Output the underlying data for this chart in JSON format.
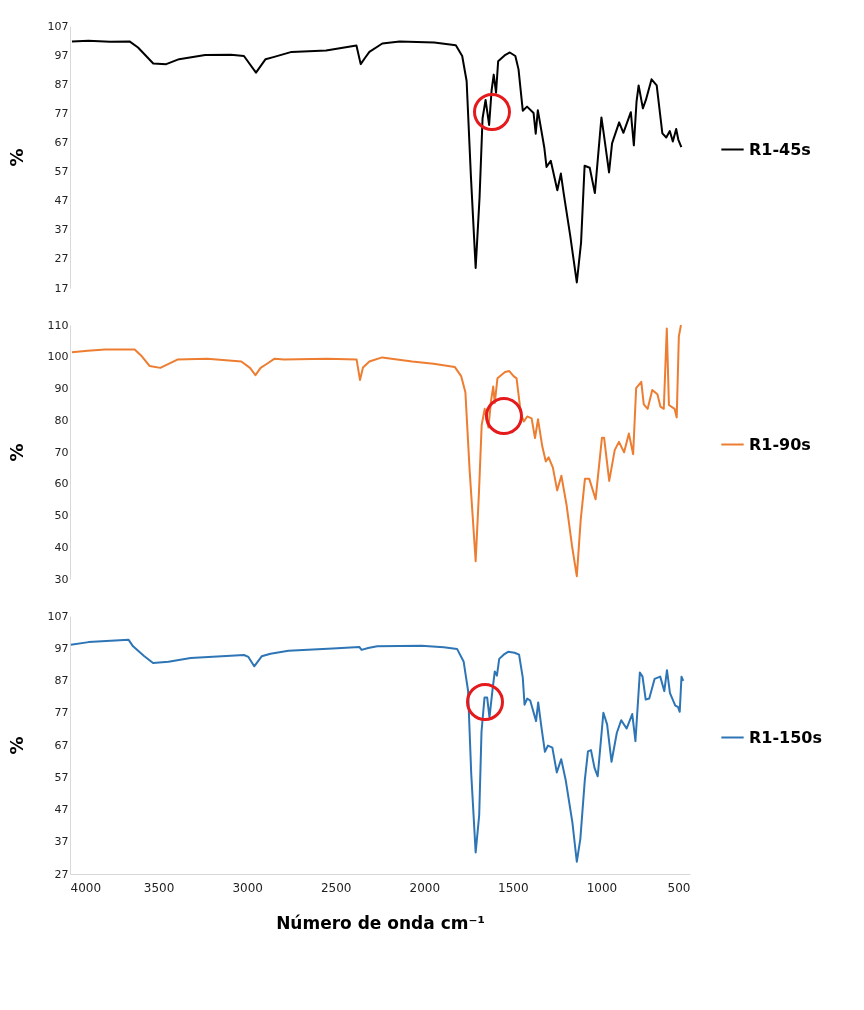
{
  "chart_data": [
    {
      "type": "line",
      "ylabel": "%",
      "xlim": [
        4000,
        500
      ],
      "ylim": [
        17,
        107
      ],
      "yticks": [
        17,
        27,
        37,
        47,
        57,
        67,
        77,
        87,
        97,
        107
      ],
      "tick_labels": "y",
      "grid": false,
      "legend": "right",
      "series": [
        {
          "name": "R1-45s",
          "color": "#000000",
          "x": [
            3989,
            3896,
            3774,
            3664,
            3616,
            3530,
            3457,
            3384,
            3237,
            3091,
            3018,
            2950,
            2896,
            2847,
            2749,
            2554,
            2383,
            2359,
            2335,
            2310,
            2237,
            2139,
            1944,
            1822,
            1786,
            1761,
            1737,
            1710,
            1688,
            1671,
            1654,
            1634,
            1620,
            1608,
            1595,
            1583,
            1542,
            1517,
            1486,
            1468,
            1444,
            1420,
            1383,
            1371,
            1359,
            1334,
            1322,
            1310,
            1286,
            1249,
            1229,
            1212,
            1176,
            1139,
            1115,
            1095,
            1066,
            1037,
            1000,
            986,
            957,
            940,
            900,
            876,
            834,
            817,
            802,
            790,
            766,
            749,
            717,
            688,
            656,
            634,
            614,
            597,
            578,
            566,
            549
          ],
          "values": [
            101.7,
            101.9,
            101.6,
            101.7,
            99.6,
            94.1,
            93.9,
            95.6,
            97.0,
            97.1,
            96.7,
            91.0,
            95.6,
            96.4,
            98.1,
            98.6,
            100.3,
            93.9,
            96.0,
            98.1,
            101.0,
            101.7,
            101.3,
            100.4,
            96.7,
            88.1,
            55.6,
            23.9,
            48.1,
            75.3,
            81.6,
            73.0,
            84.9,
            90.3,
            84.1,
            94.9,
            97.1,
            97.9,
            96.7,
            92.1,
            77.9,
            79.3,
            77.1,
            70.0,
            78.1,
            69.3,
            65.0,
            58.6,
            60.7,
            50.6,
            56.3,
            49.1,
            34.9,
            18.9,
            32.6,
            59.0,
            58.3,
            49.6,
            75.6,
            69.6,
            56.7,
            66.7,
            73.9,
            70.3,
            77.4,
            66.0,
            80.9,
            86.6,
            78.7,
            81.6,
            88.7,
            86.6,
            70.1,
            68.7,
            70.9,
            67.3,
            71.6,
            68.0,
            65.4
          ]
        }
      ]
    },
    {
      "type": "line",
      "ylabel": "%",
      "xlim": [
        4000,
        500
      ],
      "ylim": [
        30,
        110
      ],
      "yticks": [
        30,
        40,
        50,
        60,
        70,
        80,
        90,
        100,
        110
      ],
      "tick_labels": "y",
      "grid": false,
      "legend": "right",
      "series": [
        {
          "name": "R1-90s",
          "color": "#ed7d31",
          "x": [
            3989,
            3900,
            3803,
            3635,
            3599,
            3551,
            3490,
            3394,
            3225,
            3033,
            2984,
            2953,
            2924,
            2888,
            2845,
            2792,
            2551,
            2382,
            2363,
            2346,
            2310,
            2238,
            2069,
            1948,
            1828,
            1792,
            1768,
            1744,
            1710,
            1691,
            1676,
            1659,
            1638,
            1623,
            1611,
            1602,
            1587,
            1544,
            1520,
            1496,
            1479,
            1455,
            1438,
            1419,
            1394,
            1375,
            1358,
            1334,
            1314,
            1298,
            1274,
            1250,
            1226,
            1197,
            1166,
            1139,
            1117,
            1093,
            1069,
            1033,
            997,
            985,
            956,
            925,
            901,
            872,
            845,
            821,
            804,
            775,
            761,
            739,
            713,
            684,
            667,
            648,
            631,
            619,
            587,
            575,
            563,
            551
          ],
          "values": [
            101.4,
            101.9,
            102.3,
            102.3,
            100.4,
            97.1,
            96.5,
            99.1,
            99.4,
            98.5,
            96.5,
            94.2,
            96.5,
            97.8,
            99.4,
            99.1,
            99.4,
            99.1,
            92.7,
            96.6,
            98.5,
            99.8,
            98.5,
            97.8,
            96.8,
            93.9,
            88.8,
            64.2,
            35.6,
            57.7,
            78.5,
            83.6,
            77.7,
            86.2,
            90.6,
            85.5,
            93.2,
            95.2,
            95.5,
            93.9,
            93.2,
            82.2,
            79.6,
            81.2,
            80.6,
            74.4,
            80.3,
            71.8,
            67.0,
            68.3,
            65.1,
            57.9,
            62.5,
            53.4,
            40.4,
            30.9,
            48.6,
            61.6,
            61.6,
            55.1,
            74.5,
            74.5,
            60.9,
            70.6,
            73.2,
            69.9,
            75.8,
            69.3,
            90.1,
            92.1,
            85.0,
            83.6,
            89.5,
            88.2,
            84.3,
            83.6,
            108.9,
            84.8,
            83.6,
            80.9,
            106.4,
            110
          ]
        }
      ]
    },
    {
      "type": "line",
      "ylabel": "%",
      "xlabel": "Número de onda cm⁻¹",
      "xlim": [
        4000,
        500
      ],
      "xticks": [
        4000,
        3500,
        3000,
        2500,
        2000,
        1500,
        1000,
        500
      ],
      "ylim": [
        27,
        107
      ],
      "yticks": [
        27,
        37,
        47,
        57,
        67,
        77,
        87,
        97,
        107
      ],
      "grid": false,
      "legend": "right",
      "series": [
        {
          "name": "R1-150s",
          "color": "#2e75b6",
          "x": [
            3995,
            3895,
            3770,
            3669,
            3644,
            3582,
            3531,
            3444,
            3319,
            3143,
            3018,
            2993,
            2960,
            2918,
            2868,
            2767,
            2517,
            2367,
            2354,
            2317,
            2266,
            2016,
            1890,
            1815,
            1778,
            1753,
            1735,
            1710,
            1690,
            1677,
            1660,
            1645,
            1632,
            1615,
            1602,
            1590,
            1577,
            1552,
            1527,
            1490,
            1465,
            1444,
            1434,
            1419,
            1402,
            1369,
            1357,
            1339,
            1319,
            1302,
            1277,
            1252,
            1227,
            1201,
            1164,
            1139,
            1119,
            1094,
            1076,
            1059,
            1039,
            1021,
            989,
            968,
            943,
            913,
            888,
            858,
            826,
            808,
            783,
            768,
            750,
            730,
            700,
            668,
            645,
            630,
            613,
            583,
            568,
            558,
            548,
            538
          ],
          "values": [
            98.1,
            98.9,
            99.3,
            99.6,
            97.6,
            94.6,
            92.4,
            92.8,
            94.0,
            94.5,
            94.9,
            94.3,
            91.4,
            94.5,
            95.3,
            96.2,
            96.9,
            97.4,
            96.5,
            97.1,
            97.6,
            97.8,
            97.3,
            96.8,
            92.9,
            83.9,
            58.1,
            33.7,
            45.3,
            71.1,
            81.7,
            81.7,
            75.6,
            84.0,
            89.8,
            88.5,
            93.7,
            95.0,
            95.9,
            95.6,
            95.0,
            87.9,
            79.5,
            81.4,
            80.8,
            74.4,
            80.2,
            72.6,
            64.9,
            66.8,
            66.2,
            58.5,
            62.6,
            55.9,
            43.0,
            30.8,
            37.9,
            56.0,
            65.0,
            65.4,
            59.9,
            57.3,
            77.0,
            73.4,
            61.8,
            70.8,
            74.7,
            72.1,
            76.6,
            68.2,
            89.5,
            88.2,
            81.1,
            81.4,
            87.5,
            88.2,
            83.7,
            90.2,
            83.1,
            79.2,
            78.8,
            77.3,
            88.2,
            86.9
          ]
        }
      ]
    }
  ]
}
